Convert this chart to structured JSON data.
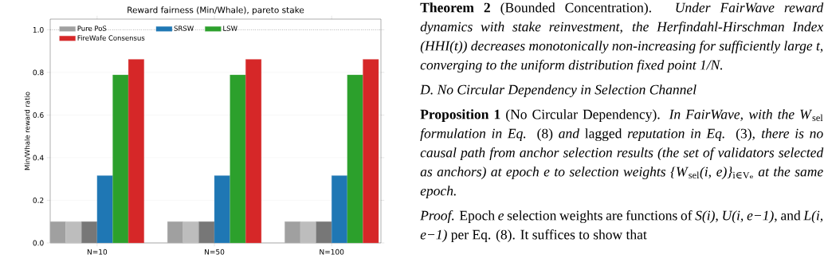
{
  "chart_data": {
    "type": "bar",
    "title": "Reward fairness (Min/Whale), pareto stake",
    "ylabel": "Min/Whale reward ratio",
    "categories": [
      "N=10",
      "N=50",
      "N=100"
    ],
    "series": [
      {
        "name": "Pure PoS",
        "color": "#a0a0a0",
        "values": [
          0.1,
          0.1,
          0.1
        ]
      },
      {
        "color": "#bdbdbd",
        "values": [
          0.1,
          0.1,
          0.1
        ]
      },
      {
        "color": "#777777",
        "values": [
          0.1,
          0.1,
          0.1
        ]
      },
      {
        "name": "SRSW",
        "color": "#1f77b4",
        "values": [
          0.316,
          0.316,
          0.316
        ]
      },
      {
        "name": "LSW",
        "color": "#2ca02c",
        "values": [
          0.788,
          0.788,
          0.788
        ]
      },
      {
        "name": "FireWafe Consensus",
        "color": "#d62728",
        "values": [
          0.861,
          0.861,
          0.861
        ]
      }
    ],
    "ylim": [
      0,
      1.05
    ],
    "yticks": [
      {
        "value": 0,
        "label": "0.0"
      },
      0.2,
      0.4,
      0.6,
      0.8,
      {
        "value": 1,
        "label": "1.0"
      }
    ],
    "grid": "y",
    "legend": "top left",
    "ref_lines": [
      {
        "axis": "y",
        "value": 1,
        "color": "#555555",
        "line_style": "dotted"
      }
    ],
    "annotations": [
      "**Theorem 2** (Bounded Concentration). *Under FairWave reward dynamics with stake reinvestment, the Herfindahl-Hirschman Index (HHI(t)) decreases monotonically non-increasing for sufficiently large t, converging to the uniform distribution fixed point 1/N.*",
      "*D. No Circular Dependency in Selection Channel*",
      "**Proposition 1** (No Circular Dependency). *In FairWave, with the W*$_{sel}$ *formulation in Eq.* (8) *and* lagged *reputation in Eq.* (3)*, there is no causal path from anchor selection results (the set of validators selected as anchors) at epoch e to selection weights {W*$_{sel}$*(i, e)}*$_{i∈Vₑ}$ *at the same epoch.*",
      "*Proof.* Epoch *e* selection weights are functions of *S(i)*, *U(i, e−1)*, and *L(i, e−1)* per Eq. (8). It suffices to show that"
    ]
  }
}
